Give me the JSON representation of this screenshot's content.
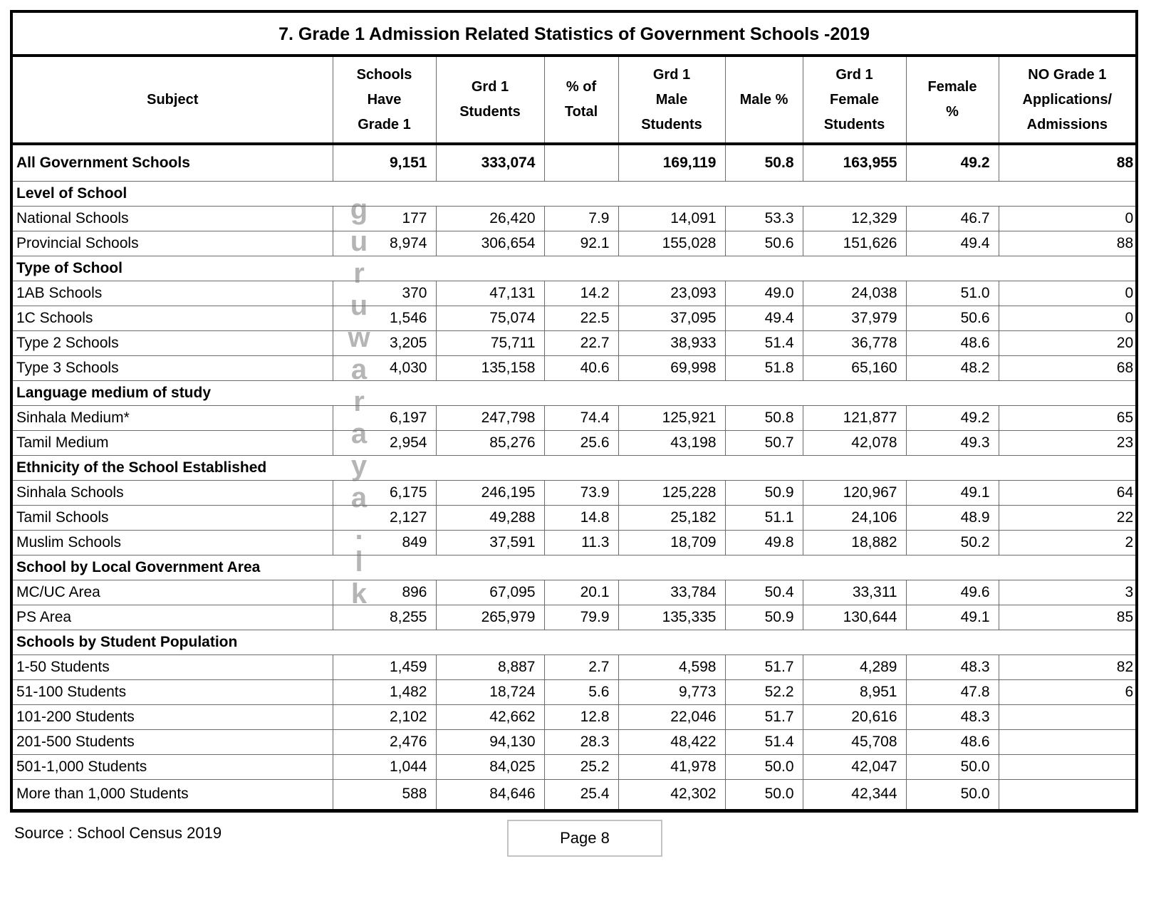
{
  "table": {
    "title": "7. Grade 1 Admission Related Statistics of Government Schools -2019",
    "columns": [
      "Subject",
      "Schools\nHave\nGrade 1",
      "Grd 1\nStudents",
      "% of\nTotal",
      "Grd 1\nMale\nStudents",
      "Male  %",
      "Grd 1\nFemale\nStudents",
      "Female\n%",
      "NO Grade 1\nApplications/\nAdmissions"
    ],
    "rows": [
      {
        "type": "total",
        "label": "All Government Schools",
        "values": [
          "9,151",
          "333,074",
          "",
          "169,119",
          "50.8",
          "163,955",
          "49.2",
          "88"
        ]
      },
      {
        "type": "section",
        "label": "Level of School"
      },
      {
        "type": "data",
        "label": "National Schools",
        "values": [
          "177",
          "26,420",
          "7.9",
          "14,091",
          "53.3",
          "12,329",
          "46.7",
          "0"
        ]
      },
      {
        "type": "data",
        "label": "Provincial Schools",
        "values": [
          "8,974",
          "306,654",
          "92.1",
          "155,028",
          "50.6",
          "151,626",
          "49.4",
          "88"
        ]
      },
      {
        "type": "section",
        "label": "Type of School"
      },
      {
        "type": "data",
        "label": "1AB Schools",
        "values": [
          "370",
          "47,131",
          "14.2",
          "23,093",
          "49.0",
          "24,038",
          "51.0",
          "0"
        ]
      },
      {
        "type": "data",
        "label": "1C Schools",
        "values": [
          "1,546",
          "75,074",
          "22.5",
          "37,095",
          "49.4",
          "37,979",
          "50.6",
          "0"
        ]
      },
      {
        "type": "data",
        "label": "Type 2 Schools",
        "values": [
          "3,205",
          "75,711",
          "22.7",
          "38,933",
          "51.4",
          "36,778",
          "48.6",
          "20"
        ]
      },
      {
        "type": "data",
        "label": "Type 3 Schools",
        "values": [
          "4,030",
          "135,158",
          "40.6",
          "69,998",
          "51.8",
          "65,160",
          "48.2",
          "68"
        ]
      },
      {
        "type": "section",
        "label": "Language medium of study"
      },
      {
        "type": "data",
        "label": "Sinhala Medium*",
        "values": [
          "6,197",
          "247,798",
          "74.4",
          "125,921",
          "50.8",
          "121,877",
          "49.2",
          "65"
        ]
      },
      {
        "type": "data",
        "label": "Tamil Medium",
        "values": [
          "2,954",
          "85,276",
          "25.6",
          "43,198",
          "50.7",
          "42,078",
          "49.3",
          "23"
        ]
      },
      {
        "type": "section",
        "label": "Ethnicity of the School Established"
      },
      {
        "type": "data",
        "label": "Sinhala Schools",
        "values": [
          "6,175",
          "246,195",
          "73.9",
          "125,228",
          "50.9",
          "120,967",
          "49.1",
          "64"
        ]
      },
      {
        "type": "data",
        "label": "Tamil Schools",
        "values": [
          "2,127",
          "49,288",
          "14.8",
          "25,182",
          "51.1",
          "24,106",
          "48.9",
          "22"
        ]
      },
      {
        "type": "data",
        "label": "Muslim Schools",
        "values": [
          "849",
          "37,591",
          "11.3",
          "18,709",
          "49.8",
          "18,882",
          "50.2",
          "2"
        ]
      },
      {
        "type": "section",
        "label": "School by Local Government Area"
      },
      {
        "type": "data",
        "label": "MC/UC Area",
        "values": [
          "896",
          "67,095",
          "20.1",
          "33,784",
          "50.4",
          "33,311",
          "49.6",
          "3"
        ]
      },
      {
        "type": "data",
        "label": "PS Area",
        "values": [
          "8,255",
          "265,979",
          "79.9",
          "135,335",
          "50.9",
          "130,644",
          "49.1",
          "85"
        ]
      },
      {
        "type": "section",
        "label": "Schools by Student Population"
      },
      {
        "type": "data",
        "label": "1-50 Students",
        "values": [
          "1,459",
          "8,887",
          "2.7",
          "4,598",
          "51.7",
          "4,289",
          "48.3",
          "82"
        ]
      },
      {
        "type": "data",
        "label": "51-100 Students",
        "values": [
          "1,482",
          "18,724",
          "5.6",
          "9,773",
          "52.2",
          "8,951",
          "47.8",
          "6"
        ]
      },
      {
        "type": "data",
        "label": "101-200 Students",
        "values": [
          "2,102",
          "42,662",
          "12.8",
          "22,046",
          "51.7",
          "20,616",
          "48.3",
          ""
        ]
      },
      {
        "type": "data",
        "label": "201-500 Students",
        "values": [
          "2,476",
          "94,130",
          "28.3",
          "48,422",
          "51.4",
          "45,708",
          "48.6",
          ""
        ]
      },
      {
        "type": "data",
        "label": "501-1,000 Students",
        "values": [
          "1,044",
          "84,025",
          "25.2",
          "41,978",
          "50.0",
          "42,047",
          "50.0",
          ""
        ]
      },
      {
        "type": "data",
        "label": "More than 1,000 Students",
        "values": [
          "588",
          "84,646",
          "25.4",
          "42,302",
          "50.0",
          "42,344",
          "50.0",
          ""
        ]
      }
    ]
  },
  "footer": {
    "source": "Source : School Census 2019",
    "page_label": "Page 8"
  },
  "watermark": {
    "text": "guruwaraya.lk",
    "color": "#a3a3a3"
  }
}
